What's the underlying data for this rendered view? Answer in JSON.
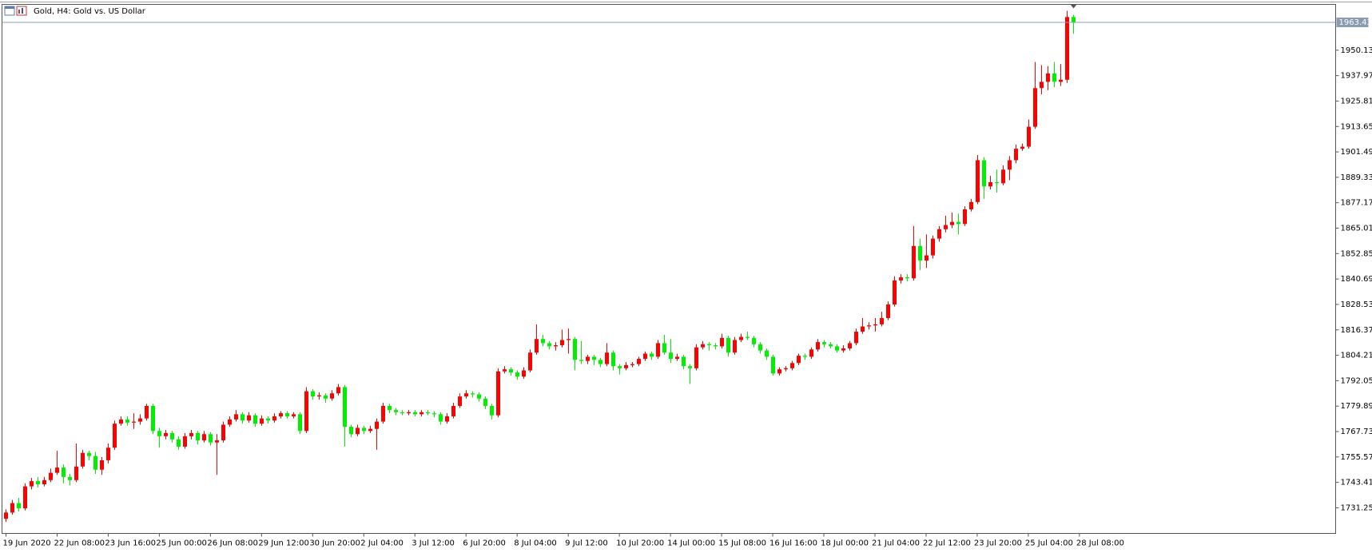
{
  "chart_data": {
    "type": "candlestick",
    "title": "Gold, H4:  Gold vs. US Dollar",
    "up_color": "#ff0000",
    "down_color": "#00ee00",
    "price_line_color": "#8a9bb0",
    "xlim": [
      -0.625,
      208.1
    ],
    "ylim": [
      1719.0,
      1972.04
    ],
    "yticks": [
      1731.25,
      1743.41,
      1755.57,
      1767.73,
      1779.89,
      1792.05,
      1804.21,
      1816.37,
      1828.53,
      1840.69,
      1852.85,
      1865.01,
      1877.17,
      1889.33,
      1901.49,
      1913.65,
      1925.81,
      1937.97,
      1950.13
    ],
    "xticks": [
      {
        "value": 0,
        "label": "19 Jun 2020"
      },
      {
        "value": 8,
        "label": "22 Jun 08:00"
      },
      {
        "value": 16,
        "label": "23 Jun 16:00"
      },
      {
        "value": 24,
        "label": "25 Jun 00:00"
      },
      {
        "value": 32,
        "label": "26 Jun 08:00"
      },
      {
        "value": 40,
        "label": "29 Jun 12:00"
      },
      {
        "value": 48,
        "label": "30 Jun 20:00"
      },
      {
        "value": 56,
        "label": "2 Jul 04:00"
      },
      {
        "value": 64,
        "label": "3 Jul 12:00"
      },
      {
        "value": 72,
        "label": "6 Jul 20:00"
      },
      {
        "value": 80,
        "label": "8 Jul 04:00"
      },
      {
        "value": 88,
        "label": "9 Jul 12:00"
      },
      {
        "value": 96,
        "label": "10 Jul 20:00"
      },
      {
        "value": 104,
        "label": "14 Jul 00:00"
      },
      {
        "value": 112,
        "label": "15 Jul 08:00"
      },
      {
        "value": 120,
        "label": "16 Jul 16:00"
      },
      {
        "value": 128,
        "label": "18 Jul 00:00"
      },
      {
        "value": 136,
        "label": "21 Jul 04:00"
      },
      {
        "value": 144,
        "label": "22 Jul 12:00"
      },
      {
        "value": 152,
        "label": "23 Jul 20:00"
      },
      {
        "value": 160,
        "label": "25 Jul 04:00"
      },
      {
        "value": 168,
        "label": "28 Jul 08:00"
      }
    ],
    "ohlc": [
      [
        1726.0,
        1730.5,
        1724.5,
        1729.0
      ],
      [
        1729.0,
        1735.0,
        1728.0,
        1733.5
      ],
      [
        1733.5,
        1736.0,
        1729.5,
        1731.0
      ],
      [
        1731.0,
        1743.0,
        1730.0,
        1741.5
      ],
      [
        1741.5,
        1745.5,
        1740.0,
        1744.0
      ],
      [
        1744.0,
        1746.0,
        1741.0,
        1742.5
      ],
      [
        1742.5,
        1746.0,
        1741.5,
        1744.5
      ],
      [
        1744.5,
        1750.0,
        1743.5,
        1748.0
      ],
      [
        1748.0,
        1758.5,
        1747.0,
        1750.5
      ],
      [
        1750.5,
        1752.0,
        1743.0,
        1746.0
      ],
      [
        1746.0,
        1747.5,
        1742.0,
        1744.5
      ],
      [
        1744.5,
        1762.0,
        1743.5,
        1751.0
      ],
      [
        1751.0,
        1759.0,
        1750.0,
        1757.5
      ],
      [
        1757.5,
        1758.5,
        1754.0,
        1756.0
      ],
      [
        1756.0,
        1758.0,
        1747.5,
        1749.5
      ],
      [
        1749.5,
        1755.5,
        1747.0,
        1754.0
      ],
      [
        1754.0,
        1762.0,
        1752.5,
        1760.0
      ],
      [
        1760.0,
        1773.0,
        1759.0,
        1771.5
      ],
      [
        1771.5,
        1775.0,
        1770.5,
        1773.5
      ],
      [
        1773.5,
        1775.0,
        1770.5,
        1772.0
      ],
      [
        1772.0,
        1776.5,
        1769.0,
        1772.5
      ],
      [
        1772.5,
        1776.0,
        1771.0,
        1774.0
      ],
      [
        1774.0,
        1781.0,
        1773.0,
        1780.0
      ],
      [
        1780.0,
        1781.0,
        1766.5,
        1768.0
      ],
      [
        1768.0,
        1769.5,
        1760.0,
        1765.5
      ],
      [
        1765.5,
        1768.5,
        1764.0,
        1767.0
      ],
      [
        1767.0,
        1768.0,
        1762.5,
        1764.0
      ],
      [
        1764.0,
        1765.5,
        1759.0,
        1760.5
      ],
      [
        1760.5,
        1767.0,
        1759.5,
        1765.5
      ],
      [
        1765.5,
        1768.5,
        1764.0,
        1767.0
      ],
      [
        1767.0,
        1768.0,
        1761.5,
        1763.5
      ],
      [
        1763.5,
        1768.0,
        1762.5,
        1766.5
      ],
      [
        1766.5,
        1767.5,
        1761.0,
        1762.5
      ],
      [
        1762.5,
        1766.5,
        1747.0,
        1763.5
      ],
      [
        1763.5,
        1772.5,
        1762.5,
        1771.0
      ],
      [
        1771.0,
        1775.0,
        1770.0,
        1773.5
      ],
      [
        1773.5,
        1778.0,
        1772.5,
        1776.0
      ],
      [
        1776.0,
        1777.0,
        1771.5,
        1773.0
      ],
      [
        1773.0,
        1777.0,
        1772.0,
        1775.5
      ],
      [
        1775.5,
        1776.5,
        1770.0,
        1771.5
      ],
      [
        1771.5,
        1775.5,
        1770.5,
        1774.0
      ],
      [
        1774.0,
        1775.0,
        1771.5,
        1773.0
      ],
      [
        1773.0,
        1776.5,
        1772.0,
        1775.0
      ],
      [
        1775.0,
        1777.5,
        1774.0,
        1776.5
      ],
      [
        1776.5,
        1777.5,
        1774.0,
        1775.0
      ],
      [
        1775.0,
        1777.0,
        1774.0,
        1776.0
      ],
      [
        1776.0,
        1777.0,
        1766.5,
        1768.0
      ],
      [
        1768.0,
        1789.0,
        1767.0,
        1787.0
      ],
      [
        1787.0,
        1788.0,
        1783.0,
        1784.5
      ],
      [
        1784.5,
        1786.5,
        1783.0,
        1785.0
      ],
      [
        1785.0,
        1786.0,
        1781.5,
        1783.5
      ],
      [
        1783.5,
        1787.5,
        1782.5,
        1786.0
      ],
      [
        1786.0,
        1790.5,
        1785.0,
        1789.0
      ],
      [
        1789.0,
        1790.0,
        1760.5,
        1770.0
      ],
      [
        1770.0,
        1771.0,
        1765.0,
        1766.5
      ],
      [
        1766.5,
        1771.0,
        1765.5,
        1769.5
      ],
      [
        1769.5,
        1770.5,
        1766.5,
        1768.0
      ],
      [
        1768.0,
        1770.5,
        1767.0,
        1769.0
      ],
      [
        1769.0,
        1774.0,
        1759.0,
        1772.5
      ],
      [
        1772.5,
        1781.5,
        1771.5,
        1780.0
      ],
      [
        1780.0,
        1781.0,
        1776.5,
        1778.0
      ],
      [
        1778.0,
        1779.0,
        1775.5,
        1777.0
      ],
      [
        1777.0,
        1778.0,
        1775.5,
        1776.5
      ],
      [
        1776.5,
        1778.0,
        1775.5,
        1777.0
      ],
      [
        1777.0,
        1778.0,
        1775.0,
        1776.0
      ],
      [
        1776.0,
        1778.0,
        1775.0,
        1777.0
      ],
      [
        1777.0,
        1778.0,
        1775.5,
        1776.5
      ],
      [
        1776.5,
        1777.5,
        1774.5,
        1776.0
      ],
      [
        1776.0,
        1777.0,
        1771.0,
        1772.5
      ],
      [
        1772.5,
        1776.5,
        1771.5,
        1775.0
      ],
      [
        1775.0,
        1781.5,
        1774.0,
        1780.0
      ],
      [
        1780.0,
        1786.0,
        1779.0,
        1784.5
      ],
      [
        1784.5,
        1787.5,
        1783.5,
        1786.0
      ],
      [
        1786.0,
        1787.0,
        1784.0,
        1785.5
      ],
      [
        1785.5,
        1786.5,
        1782.0,
        1783.5
      ],
      [
        1783.5,
        1784.5,
        1778.5,
        1780.0
      ],
      [
        1780.0,
        1781.0,
        1773.5,
        1775.5
      ],
      [
        1775.5,
        1798.0,
        1774.5,
        1796.5
      ],
      [
        1796.5,
        1799.0,
        1795.5,
        1797.5
      ],
      [
        1797.5,
        1798.5,
        1794.5,
        1796.0
      ],
      [
        1796.0,
        1797.0,
        1792.5,
        1794.0
      ],
      [
        1794.0,
        1798.5,
        1793.0,
        1797.0
      ],
      [
        1797.0,
        1807.0,
        1796.0,
        1805.5
      ],
      [
        1805.5,
        1819.0,
        1804.5,
        1812.0
      ],
      [
        1812.0,
        1814.0,
        1808.5,
        1810.0
      ],
      [
        1810.0,
        1811.0,
        1807.0,
        1808.5
      ],
      [
        1808.5,
        1810.5,
        1806.5,
        1809.0
      ],
      [
        1809.0,
        1816.5,
        1808.0,
        1811.5
      ],
      [
        1811.5,
        1817.0,
        1805.0,
        1812.0
      ],
      [
        1812.0,
        1813.0,
        1797.0,
        1802.0
      ],
      [
        1802.0,
        1811.0,
        1800.0,
        1801.5
      ],
      [
        1801.5,
        1804.5,
        1800.0,
        1803.5
      ],
      [
        1803.5,
        1804.5,
        1799.5,
        1802.0
      ],
      [
        1802.0,
        1803.0,
        1798.5,
        1800.0
      ],
      [
        1800.0,
        1810.0,
        1799.0,
        1805.5
      ],
      [
        1805.5,
        1806.5,
        1797.0,
        1799.0
      ],
      [
        1799.0,
        1800.0,
        1795.0,
        1798.0
      ],
      [
        1798.0,
        1801.0,
        1797.0,
        1799.5
      ],
      [
        1799.5,
        1801.0,
        1798.5,
        1800.0
      ],
      [
        1800.0,
        1803.5,
        1799.0,
        1802.5
      ],
      [
        1802.5,
        1806.0,
        1801.5,
        1805.0
      ],
      [
        1805.0,
        1806.0,
        1802.0,
        1803.5
      ],
      [
        1803.5,
        1811.5,
        1802.5,
        1810.0
      ],
      [
        1810.0,
        1814.0,
        1804.5,
        1805.5
      ],
      [
        1805.5,
        1812.0,
        1800.5,
        1802.5
      ],
      [
        1802.5,
        1805.0,
        1801.5,
        1803.5
      ],
      [
        1803.5,
        1804.5,
        1797.5,
        1799.0
      ],
      [
        1799.0,
        1800.0,
        1790.5,
        1798.0
      ],
      [
        1798.0,
        1809.5,
        1797.0,
        1808.0
      ],
      [
        1808.0,
        1811.0,
        1807.0,
        1809.5
      ],
      [
        1809.5,
        1810.5,
        1806.5,
        1809.0
      ],
      [
        1809.0,
        1810.0,
        1807.0,
        1808.5
      ],
      [
        1808.5,
        1814.5,
        1807.5,
        1812.5
      ],
      [
        1812.5,
        1813.5,
        1803.5,
        1805.5
      ],
      [
        1805.5,
        1813.0,
        1804.5,
        1811.5
      ],
      [
        1811.5,
        1814.5,
        1810.5,
        1813.0
      ],
      [
        1813.0,
        1815.5,
        1811.5,
        1812.5
      ],
      [
        1812.5,
        1813.5,
        1808.0,
        1809.5
      ],
      [
        1809.5,
        1810.5,
        1805.0,
        1806.5
      ],
      [
        1806.5,
        1807.5,
        1802.0,
        1803.5
      ],
      [
        1803.5,
        1804.5,
        1794.5,
        1795.5
      ],
      [
        1795.5,
        1798.5,
        1794.5,
        1797.5
      ],
      [
        1797.5,
        1799.0,
        1796.5,
        1798.0
      ],
      [
        1798.0,
        1801.5,
        1797.0,
        1800.5
      ],
      [
        1800.5,
        1805.0,
        1799.5,
        1804.0
      ],
      [
        1804.0,
        1805.0,
        1802.0,
        1803.5
      ],
      [
        1803.5,
        1808.0,
        1802.5,
        1807.0
      ],
      [
        1807.0,
        1812.0,
        1806.0,
        1810.5
      ],
      [
        1810.5,
        1811.5,
        1808.0,
        1809.5
      ],
      [
        1809.5,
        1810.5,
        1807.5,
        1808.5
      ],
      [
        1808.5,
        1809.5,
        1805.5,
        1806.5
      ],
      [
        1806.5,
        1809.0,
        1805.5,
        1807.5
      ],
      [
        1807.5,
        1811.0,
        1806.5,
        1810.0
      ],
      [
        1810.0,
        1817.0,
        1809.0,
        1815.5
      ],
      [
        1815.5,
        1822.0,
        1814.5,
        1818.0
      ],
      [
        1818.0,
        1820.0,
        1816.5,
        1818.5
      ],
      [
        1818.5,
        1822.0,
        1815.5,
        1819.0
      ],
      [
        1819.0,
        1825.0,
        1818.0,
        1822.0
      ],
      [
        1822.0,
        1830.0,
        1821.0,
        1828.5
      ],
      [
        1828.5,
        1842.0,
        1827.5,
        1840.0
      ],
      [
        1840.0,
        1843.0,
        1838.5,
        1841.5
      ],
      [
        1841.5,
        1843.0,
        1839.5,
        1841.0
      ],
      [
        1841.0,
        1866.0,
        1840.0,
        1856.5
      ],
      [
        1856.5,
        1860.0,
        1845.0,
        1849.5
      ],
      [
        1849.5,
        1862.0,
        1846.0,
        1852.0
      ],
      [
        1852.0,
        1861.5,
        1850.5,
        1860.0
      ],
      [
        1860.0,
        1866.0,
        1858.5,
        1864.5
      ],
      [
        1864.5,
        1871.0,
        1863.0,
        1866.5
      ],
      [
        1866.5,
        1872.5,
        1865.0,
        1868.0
      ],
      [
        1868.0,
        1872.0,
        1862.0,
        1867.0
      ],
      [
        1867.0,
        1875.5,
        1866.0,
        1874.0
      ],
      [
        1874.0,
        1879.0,
        1873.0,
        1877.5
      ],
      [
        1877.5,
        1900.0,
        1876.5,
        1897.5
      ],
      [
        1897.5,
        1899.0,
        1879.0,
        1885.0
      ],
      [
        1885.0,
        1890.0,
        1883.5,
        1887.0
      ],
      [
        1887.0,
        1893.0,
        1882.0,
        1886.5
      ],
      [
        1886.5,
        1895.0,
        1885.5,
        1893.0
      ],
      [
        1893.0,
        1899.5,
        1888.0,
        1897.5
      ],
      [
        1897.5,
        1905.0,
        1896.0,
        1903.0
      ],
      [
        1903.0,
        1905.5,
        1902.0,
        1904.0
      ],
      [
        1904.0,
        1917.0,
        1903.0,
        1913.5
      ],
      [
        1913.5,
        1944.5,
        1912.5,
        1932.0
      ],
      [
        1932.0,
        1943.0,
        1929.0,
        1935.0
      ],
      [
        1935.0,
        1942.5,
        1931.0,
        1939.0
      ],
      [
        1939.0,
        1944.5,
        1932.5,
        1935.0
      ],
      [
        1935.0,
        1943.5,
        1933.0,
        1936.0
      ],
      [
        1936.0,
        1969.0,
        1934.5,
        1966.0
      ],
      [
        1966.0,
        1967.0,
        1958.0,
        1963.43
      ]
    ]
  }
}
